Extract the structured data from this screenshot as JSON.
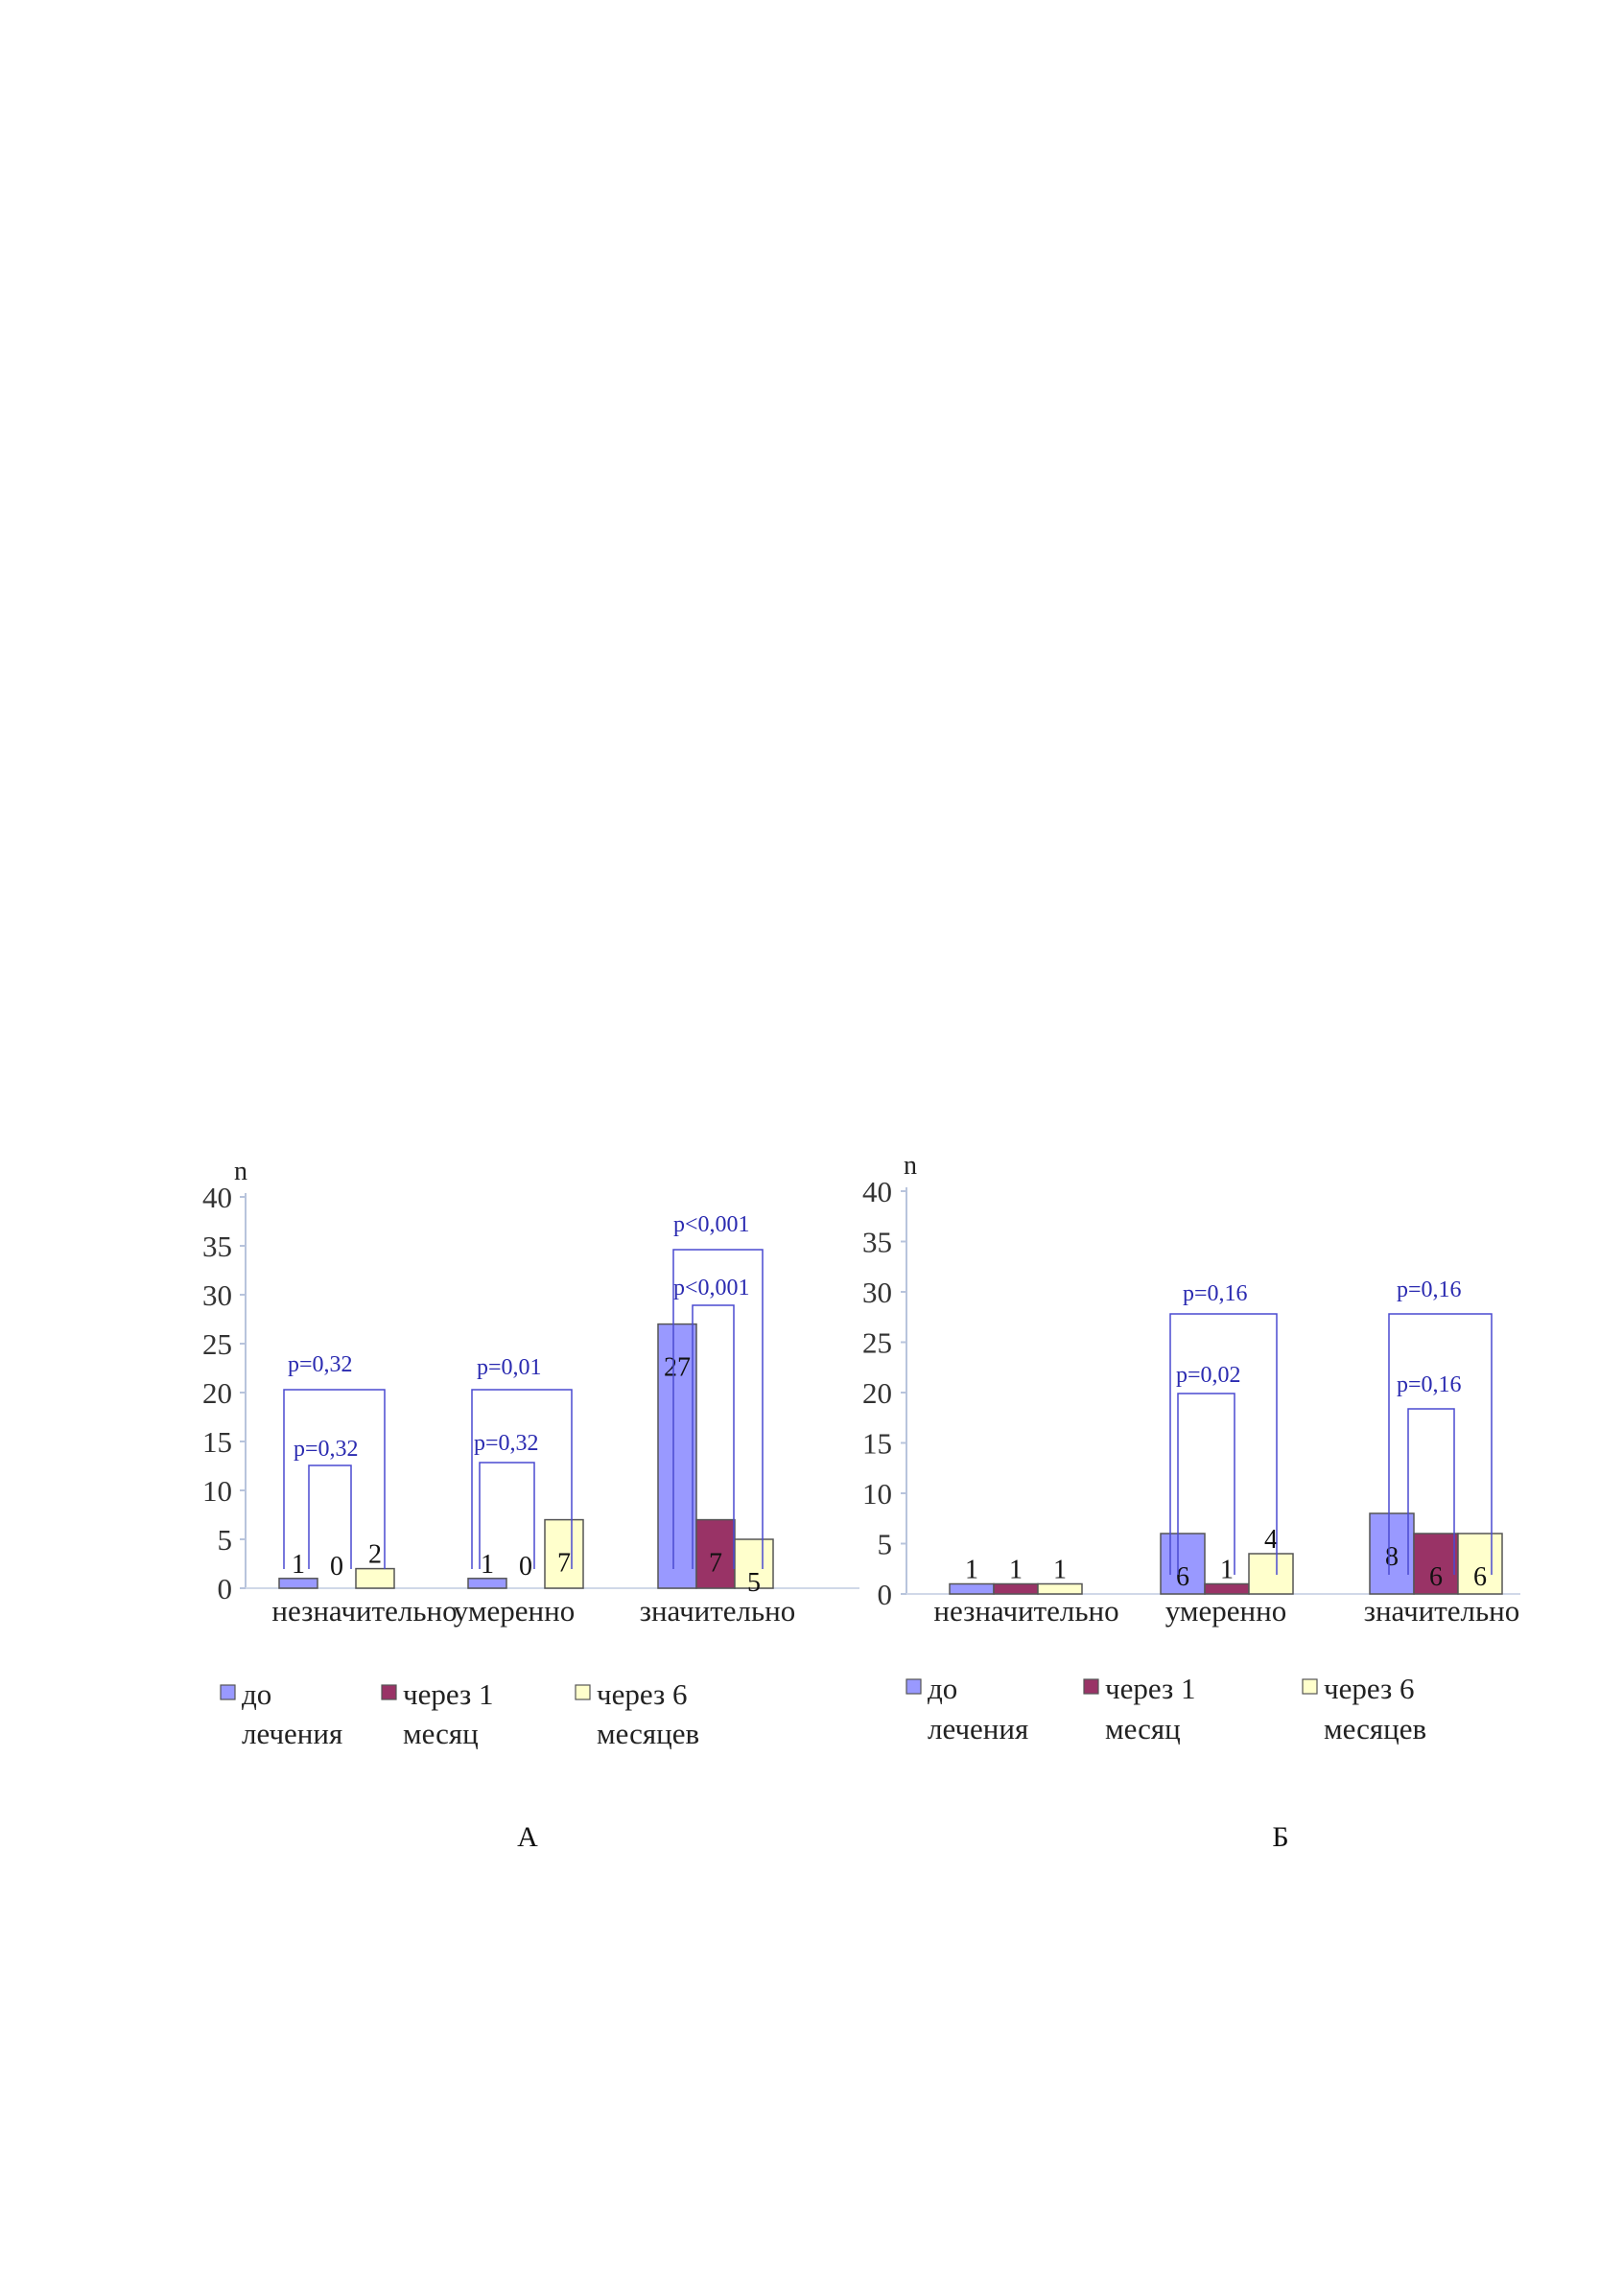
{
  "chart_data": [
    {
      "type": "bar",
      "panel_label": "А",
      "ylabel": "n",
      "ylim": [
        0,
        40
      ],
      "yticks": [
        "0",
        "5",
        "10",
        "15",
        "20",
        "25",
        "30",
        "35",
        "40"
      ],
      "categories": [
        "незначительно",
        "умеренно",
        "значительно"
      ],
      "series": [
        {
          "name": "до лечения",
          "legend_lines": [
            "до",
            "лечения"
          ],
          "color": "#9999ff",
          "values": [
            1,
            1,
            27
          ]
        },
        {
          "name": "через 1 месяц",
          "legend_lines": [
            "через 1",
            "месяц"
          ],
          "color": "#993366",
          "values": [
            0,
            0,
            7
          ]
        },
        {
          "name": "через 6 месяцев",
          "legend_lines": [
            "через 6",
            "месяцев"
          ],
          "color": "#ffffcc",
          "values": [
            2,
            7,
            5
          ]
        }
      ],
      "annotations": [
        {
          "category": 0,
          "outer": "p=0,32",
          "inner": "p=0,32"
        },
        {
          "category": 1,
          "outer": "p=0,01",
          "inner": "p=0,32"
        },
        {
          "category": 2,
          "outer": "p<0,001",
          "inner": "p<0,001"
        }
      ]
    },
    {
      "type": "bar",
      "panel_label": "Б",
      "ylabel": "n",
      "ylim": [
        0,
        40
      ],
      "yticks": [
        "0",
        "5",
        "10",
        "15",
        "20",
        "25",
        "30",
        "35",
        "40"
      ],
      "categories": [
        "незначительно",
        "умеренно",
        "значительно"
      ],
      "series": [
        {
          "name": "до лечения",
          "legend_lines": [
            "до",
            "лечения"
          ],
          "color": "#9999ff",
          "values": [
            1,
            6,
            8
          ]
        },
        {
          "name": "через 1 месяц",
          "legend_lines": [
            "через 1",
            "месяц"
          ],
          "color": "#993366",
          "values": [
            1,
            1,
            6
          ]
        },
        {
          "name": "через 6 месяцев",
          "legend_lines": [
            "через 6",
            "месяцев"
          ],
          "color": "#ffffcc",
          "values": [
            1,
            4,
            6
          ]
        }
      ],
      "annotations": [
        {
          "category": 1,
          "outer": "p=0,16",
          "inner": "p=0,02"
        },
        {
          "category": 2,
          "outer": "p=0,16",
          "inner": "p=0,16"
        }
      ]
    }
  ]
}
